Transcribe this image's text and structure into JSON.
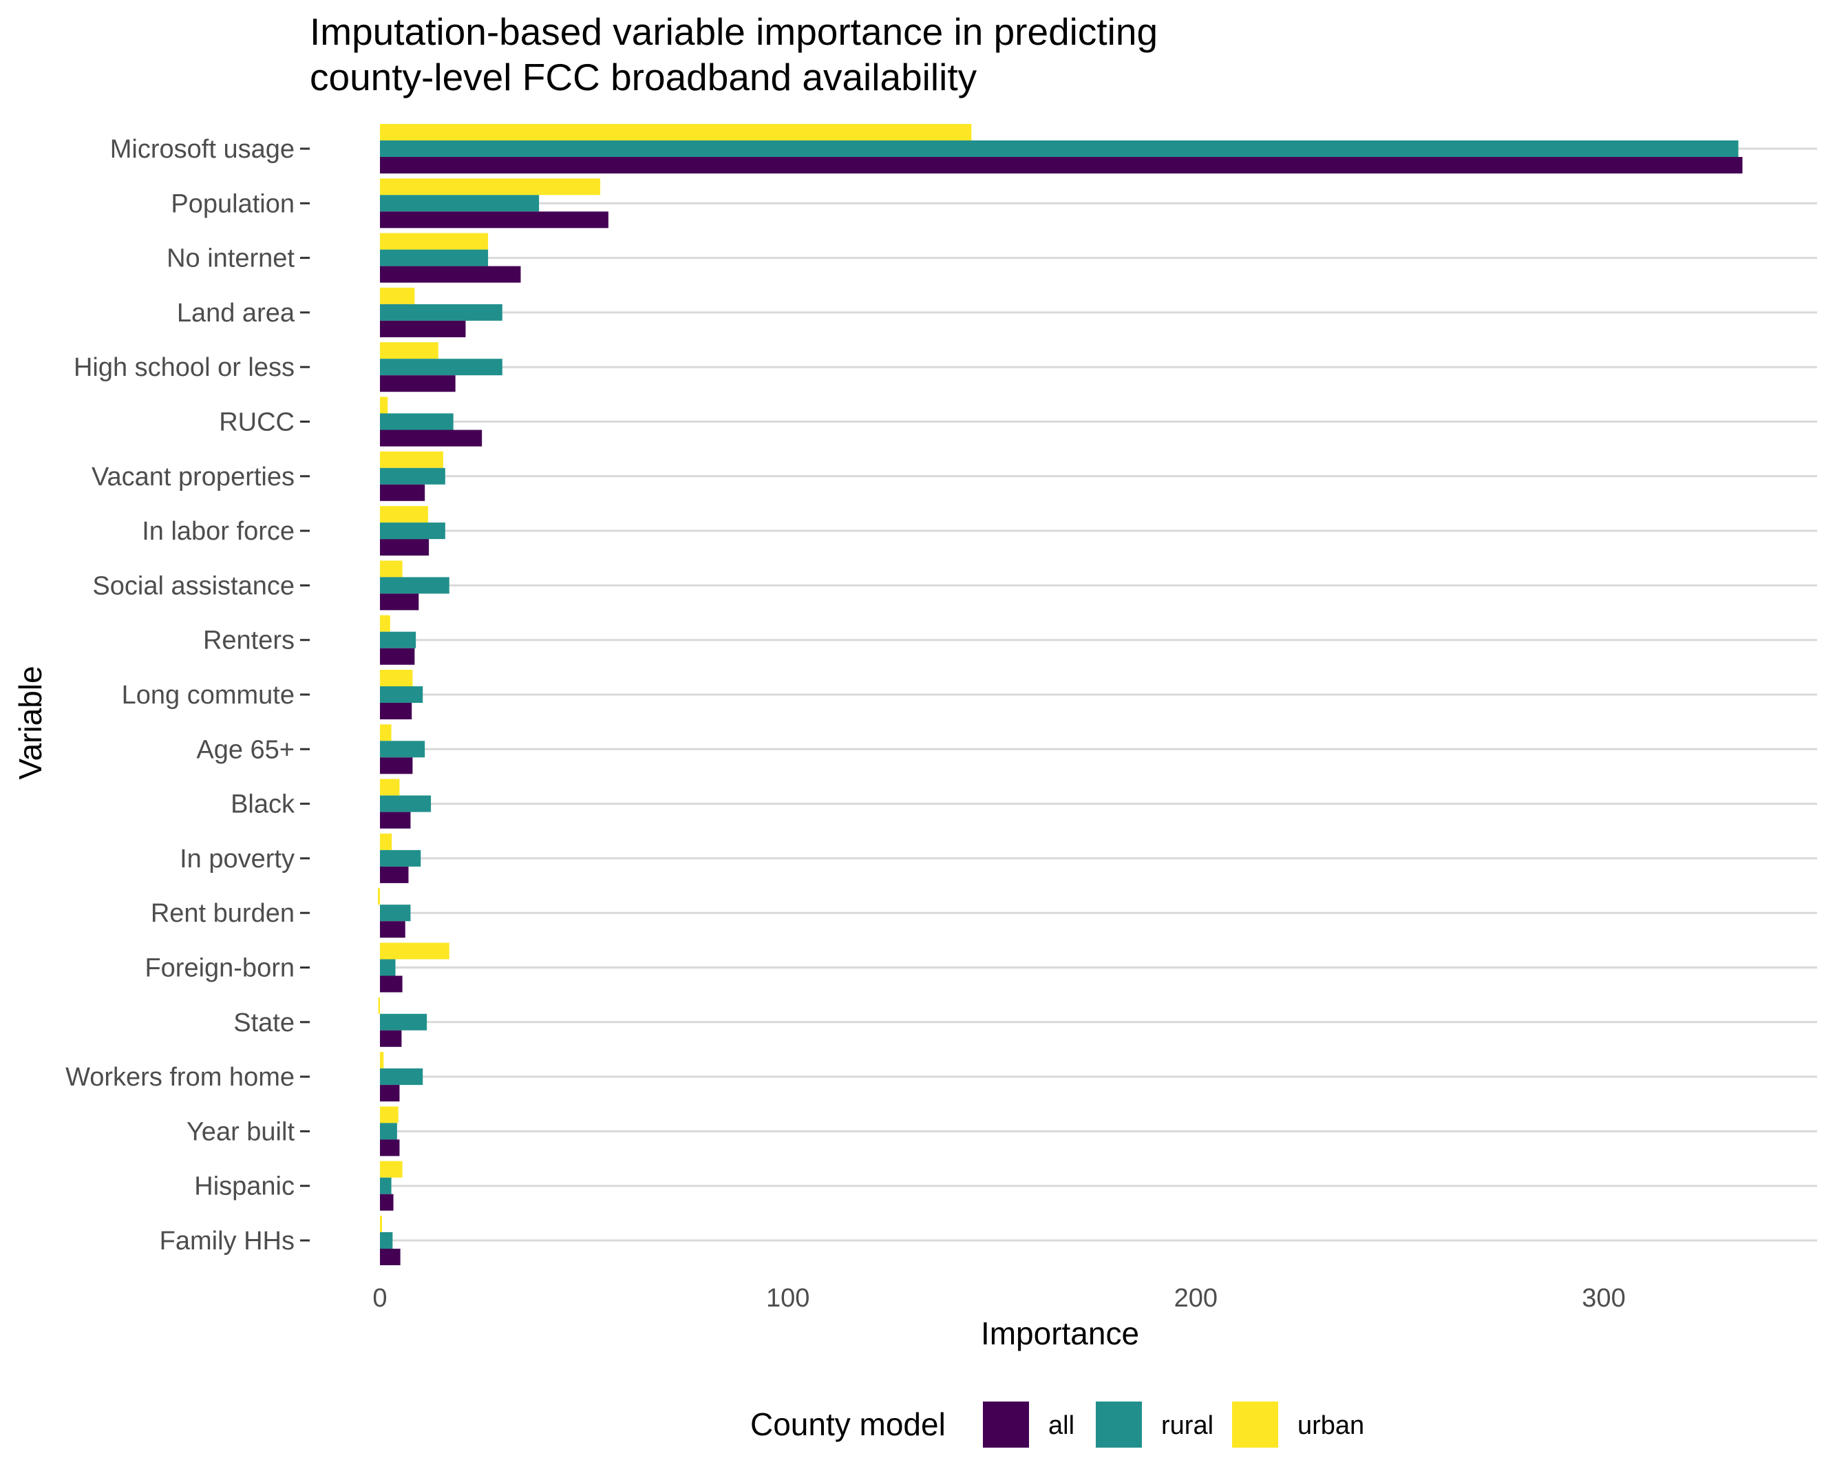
{
  "chart_data": {
    "type": "bar",
    "orientation": "horizontal",
    "title": "Imputation-based variable importance in predicting\ncounty-level FCC broadband availability",
    "title_lines": [
      "Imputation-based variable importance in predicting",
      "county-level FCC broadband availability"
    ],
    "xlabel": "Importance",
    "ylabel": "Variable",
    "xlim": [
      -17,
      350
    ],
    "xticks": [
      0,
      100,
      200,
      300
    ],
    "xtick_labels": [
      "0",
      "100",
      "200",
      "300"
    ],
    "grid": "horizontal major gridlines",
    "legend": {
      "title": "County model",
      "position": "bottom"
    },
    "categories": [
      "Microsoft usage",
      "Population",
      "No internet",
      "Land area",
      "High school or less",
      "RUCC",
      "Vacant properties",
      "In labor force",
      "Social assistance",
      "Renters",
      "Long commute",
      "Age 65+",
      "Black",
      "In poverty",
      "Rent burden",
      "Foreign-born",
      "State",
      "Workers from home",
      "Year built",
      "Hispanic",
      "Family HHs"
    ],
    "series": [
      {
        "name": "all",
        "color": "#440154",
        "values": [
          334,
          56,
          34.5,
          21,
          18.5,
          25,
          11,
          12,
          9.5,
          8.5,
          7.8,
          8,
          7.5,
          7,
          6.2,
          5.5,
          5.3,
          4.8,
          4.8,
          3.3,
          5
        ]
      },
      {
        "name": "rural",
        "color": "#21908C",
        "values": [
          333,
          39,
          26.5,
          30,
          30,
          18,
          16,
          16,
          17,
          8.8,
          10.5,
          11,
          12.5,
          10,
          7.5,
          3.8,
          11.5,
          10.5,
          4.2,
          2.8,
          3.1
        ]
      },
      {
        "name": "urban",
        "color": "#FDE725",
        "values": [
          145,
          54,
          26.5,
          8.5,
          14.3,
          1.9,
          15.5,
          11.8,
          5.5,
          2.5,
          8,
          2.8,
          4.8,
          2.9,
          -0.5,
          17,
          -0.4,
          0.9,
          4.5,
          5.5,
          0.5
        ]
      }
    ]
  }
}
